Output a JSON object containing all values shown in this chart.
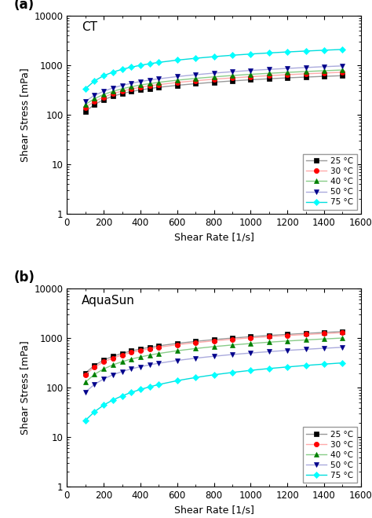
{
  "panel_a_label": "CT",
  "panel_b_label": "AquaSun",
  "xlabel": "Shear Rate [1/s]",
  "ylabel": "Shear Stress [mPa]",
  "xlim": [
    0,
    1600
  ],
  "xticks": [
    0,
    200,
    400,
    600,
    800,
    1000,
    1200,
    1400,
    1600
  ],
  "legend_labels": [
    "25 °C",
    "30 °C",
    "40 °C",
    "50 °C",
    "75 °C"
  ],
  "line_colors": [
    "#999999",
    "#ffaaaa",
    "#88cc88",
    "#aaaadd",
    "#00dddd"
  ],
  "marker_face_colors": [
    "black",
    "red",
    "green",
    "darkblue",
    "cyan"
  ],
  "marker_edge_colors": [
    "black",
    "red",
    "green",
    "darkblue",
    "cyan"
  ],
  "markers": [
    "s",
    "o",
    "^",
    "v",
    "D"
  ],
  "panel_a": {
    "shear_rates": [
      100,
      150,
      200,
      250,
      300,
      350,
      400,
      450,
      500,
      600,
      700,
      800,
      900,
      1000,
      1100,
      1200,
      1300,
      1400,
      1500
    ],
    "25C": [
      115,
      160,
      200,
      235,
      265,
      292,
      315,
      335,
      355,
      390,
      420,
      450,
      478,
      505,
      528,
      552,
      572,
      592,
      610
    ],
    "30C": [
      140,
      185,
      225,
      265,
      298,
      328,
      355,
      380,
      402,
      445,
      482,
      518,
      550,
      582,
      610,
      638,
      665,
      690,
      715
    ],
    "40C": [
      160,
      210,
      255,
      295,
      332,
      365,
      396,
      422,
      448,
      495,
      538,
      578,
      615,
      650,
      682,
      712,
      740,
      768,
      795
    ],
    "50C": [
      185,
      245,
      295,
      345,
      388,
      428,
      465,
      498,
      528,
      585,
      638,
      688,
      734,
      778,
      818,
      856,
      892,
      928,
      962
    ],
    "75C": [
      330,
      480,
      610,
      720,
      820,
      908,
      990,
      1065,
      1132,
      1258,
      1370,
      1478,
      1578,
      1670,
      1758,
      1840,
      1918,
      1995,
      2068
    ]
  },
  "panel_b": {
    "shear_rates": [
      100,
      150,
      200,
      250,
      300,
      350,
      400,
      450,
      500,
      600,
      700,
      800,
      900,
      1000,
      1100,
      1200,
      1300,
      1400,
      1500
    ],
    "25C": [
      200,
      285,
      365,
      435,
      498,
      558,
      612,
      662,
      708,
      792,
      870,
      945,
      1015,
      1082,
      1145,
      1205,
      1262,
      1318,
      1372
    ],
    "30C": [
      185,
      262,
      335,
      400,
      462,
      518,
      570,
      618,
      662,
      745,
      820,
      892,
      960,
      1025,
      1086,
      1144,
      1200,
      1254,
      1305
    ],
    "40C": [
      130,
      188,
      242,
      292,
      338,
      382,
      422,
      460,
      496,
      562,
      624,
      682,
      736,
      788,
      838,
      885,
      930,
      974,
      1016
    ],
    "50C": [
      82,
      118,
      152,
      184,
      214,
      242,
      268,
      292,
      315,
      358,
      398,
      436,
      472,
      506,
      540,
      572,
      602,
      632,
      660
    ],
    "75C": [
      22,
      33,
      45,
      57,
      69,
      81,
      93,
      105,
      117,
      140,
      162,
      184,
      205,
      226,
      246,
      265,
      284,
      302,
      320
    ]
  }
}
